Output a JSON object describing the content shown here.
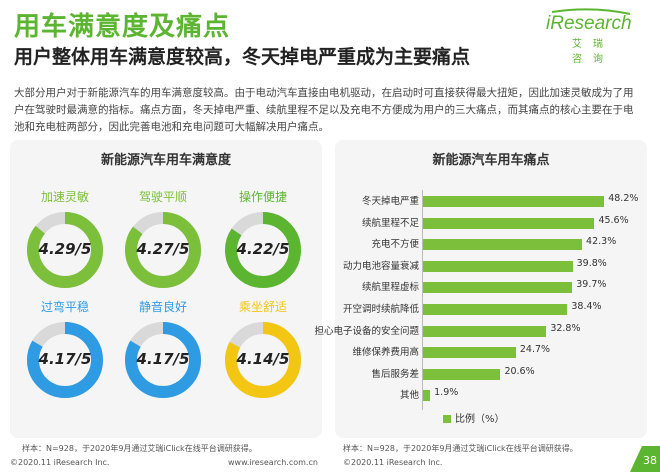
{
  "header": {
    "title": "用车满意度及痛点",
    "subtitle": "用户整体用车满意度较高，冬天掉电严重成为主要痛点",
    "logo_brand": "iResearch",
    "logo_sub": "艾瑞咨询"
  },
  "description": "大部分用户对于新能源汽车的用车满意度较高。由于电动汽车直接由电机驱动，在启动时可直接获得最大扭矩，因此加速灵敏成为了用户在驾驶时最满意的指标。痛点方面，冬天掉电严重、续航里程不足以及充电不方便成为用户的三大痛点，而其痛点的核心主要在于电池和充电桩两部分，因此完善电池和充电问题可大幅解决用户痛点。",
  "left_panel": {
    "title": "新能源汽车用车满意度",
    "items": [
      {
        "label": "加速灵敏",
        "value_text": "4.29/5",
        "score": 4.29,
        "color": "#7cbf3a"
      },
      {
        "label": "驾驶平顺",
        "value_text": "4.27/5",
        "score": 4.27,
        "color": "#7cbf3a"
      },
      {
        "label": "操作便捷",
        "value_text": "4.22/5",
        "score": 4.22,
        "color": "#5cb531"
      },
      {
        "label": "过弯平稳",
        "value_text": "4.17/5",
        "score": 4.17,
        "color": "#2f9be3"
      },
      {
        "label": "静音良好",
        "value_text": "4.17/5",
        "score": 4.17,
        "color": "#2f9be3"
      },
      {
        "label": "乘坐舒适",
        "value_text": "4.14/5",
        "score": 4.14,
        "color": "#f3c614"
      }
    ]
  },
  "right_panel": {
    "title": "新能源汽车用车痛点",
    "legend": "比例（%）"
  },
  "chart_data": {
    "type": "bar",
    "orientation": "horizontal",
    "title": "新能源汽车用车痛点",
    "categories": [
      "冬天掉电严重",
      "续航里程不足",
      "充电不方便",
      "动力电池容量衰减",
      "续航里程虚标",
      "开空调时续航降低",
      "担心电子设备的安全问题",
      "维修保养费用高",
      "售后服务差",
      "其他"
    ],
    "values": [
      48.2,
      45.6,
      42.3,
      39.8,
      39.7,
      38.4,
      32.8,
      24.7,
      20.6,
      1.9
    ],
    "value_labels": [
      "48.2%",
      "45.6%",
      "42.3%",
      "39.8%",
      "39.7%",
      "38.4%",
      "32.8%",
      "24.7%",
      "20.6%",
      "1.9%"
    ],
    "series": [
      {
        "name": "比例（%）",
        "values": [
          48.2,
          45.6,
          42.3,
          39.8,
          39.7,
          38.4,
          32.8,
          24.7,
          20.6,
          1.9
        ]
      }
    ],
    "xlim": [
      0,
      50
    ],
    "legend_position": "bottom",
    "grid": false,
    "color": "#7cbf3a"
  },
  "notes": {
    "left": "样本：N=928，于2020年9月通过艾瑞iClick在线平台调研获得。",
    "right": "样本：N=928，于2020年9月通过艾瑞iClick在线平台调研获得。"
  },
  "footer": {
    "left_copyright": "©2020.11 iResearch Inc.",
    "left_url": "www.iresearch.com.cn",
    "right_copyright": "©2020.11 iResearch Inc.",
    "page_number": "38"
  }
}
